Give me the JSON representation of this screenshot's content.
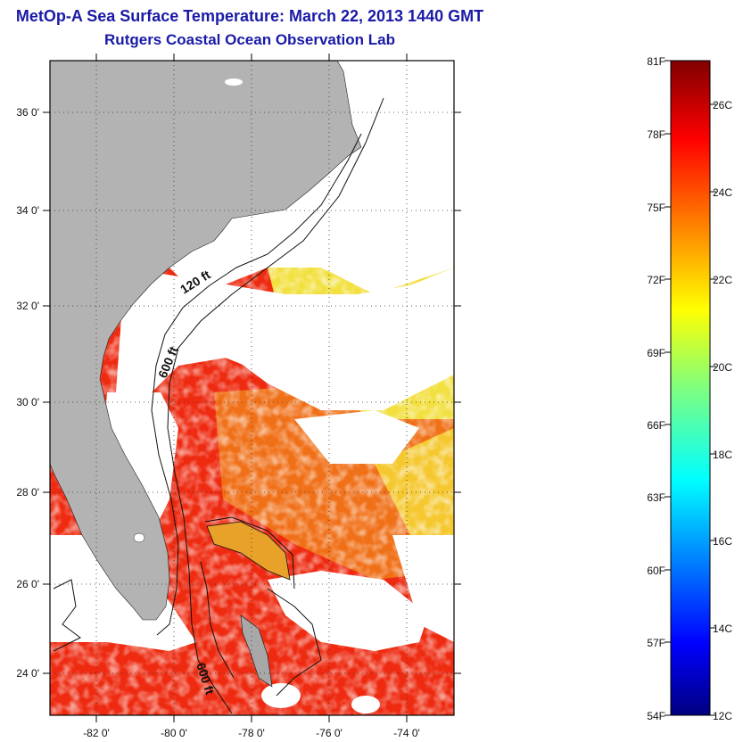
{
  "title": "MetOp-A Sea Surface Temperature:  March 22, 2013 1440 GMT",
  "subtitle": "Rutgers Coastal Ocean Observation Lab",
  "map": {
    "lon_labels": [
      "-82 0'",
      "-80 0'",
      "-78 0'",
      "-76 0'",
      "-74 0'"
    ],
    "lat_labels": [
      "36 0'",
      "34 0'",
      "32 0'",
      "30 0'",
      "28 0'",
      "26 0'",
      "24 0'"
    ],
    "contour_labels": [
      "120 ft",
      "600 ft",
      "600 ft"
    ],
    "colors": {
      "land": "#b3b3b3",
      "cloud": "#ffffff",
      "frame": "#000000"
    }
  },
  "colorbar": {
    "fahrenheit": [
      "81F",
      "78F",
      "75F",
      "72F",
      "69F",
      "66F",
      "63F",
      "60F",
      "57F",
      "54F"
    ],
    "celsius": [
      "26C",
      "24C",
      "22C",
      "20C",
      "18C",
      "16C",
      "14C",
      "12C"
    ],
    "range_c": [
      12,
      27
    ]
  }
}
